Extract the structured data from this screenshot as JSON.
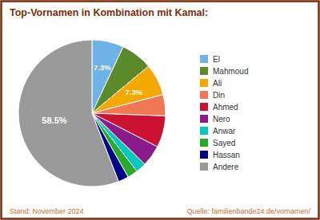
{
  "chart_data": {
    "type": "pie",
    "title": "Top-Vornamen in Kombination mit Kamal:",
    "categories": [
      "El",
      "Mahmoud",
      "Ali",
      "Din",
      "Ahmed",
      "Nero",
      "Anwar",
      "Sayed",
      "Hassan",
      "Andere"
    ],
    "values": [
      7.3,
      7.3,
      7.3,
      4.9,
      7.3,
      4.9,
      2.4,
      2.4,
      2.4,
      58.5
    ],
    "value_labels": [
      "7.3%",
      null,
      "7.3%",
      null,
      null,
      null,
      null,
      null,
      null,
      "58.5%"
    ],
    "colors": [
      "#6db3e8",
      "#5a8a2a",
      "#f5a800",
      "#f07855",
      "#cc1133",
      "#8b1a8b",
      "#00c9c0",
      "#2aaa2a",
      "#00008b",
      "#9a9a9a"
    ],
    "legend": "right",
    "annotations": [
      "Stand: November 2024",
      "Quelle: familienbande24.de/vornamen/"
    ]
  }
}
